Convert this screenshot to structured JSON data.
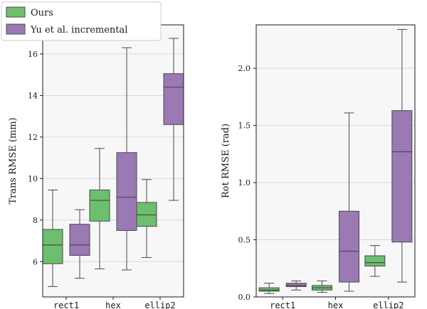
{
  "chart_data": [
    {
      "type": "box",
      "ylabel": "Trans RMSE (mm)",
      "categories": [
        "rect1",
        "hex",
        "ellip2"
      ],
      "yticks": [
        6,
        8,
        10,
        12,
        14,
        16
      ],
      "ylim": [
        4.3,
        17.4
      ],
      "grid": "horizontal",
      "legend": {
        "position": "top-left",
        "entries": [
          "Ours",
          "Yu et al. incremental"
        ]
      },
      "series": [
        {
          "name": "Ours",
          "color": "#6cbf6c",
          "boxes": [
            {
              "min": 4.8,
              "q1": 5.9,
              "median": 6.8,
              "q3": 7.55,
              "max": 9.45
            },
            {
              "min": 5.65,
              "q1": 7.95,
              "median": 8.95,
              "q3": 9.45,
              "max": 11.45
            },
            {
              "min": 6.2,
              "q1": 7.7,
              "median": 8.25,
              "q3": 8.85,
              "max": 9.95
            }
          ]
        },
        {
          "name": "Yu et al. incremental",
          "color": "#9b79b4",
          "boxes": [
            {
              "min": 5.2,
              "q1": 6.3,
              "median": 6.8,
              "q3": 7.8,
              "max": 8.5
            },
            {
              "min": 5.6,
              "q1": 7.5,
              "median": 9.1,
              "q3": 11.25,
              "max": 16.3
            },
            {
              "min": 8.95,
              "q1": 12.6,
              "median": 14.4,
              "q3": 15.05,
              "max": 16.75
            }
          ]
        }
      ]
    },
    {
      "type": "box",
      "ylabel": "Rot RMSE (rad)",
      "categories": [
        "rect1",
        "hex",
        "ellip2"
      ],
      "yticks": [
        "0.0",
        "0.5",
        "1.0",
        "1.5",
        "2.0"
      ],
      "ylim": [
        0.0,
        2.38
      ],
      "grid": "horizontal",
      "series": [
        {
          "name": "Ours",
          "color": "#6cbf6c",
          "boxes": [
            {
              "min": 0.03,
              "q1": 0.05,
              "median": 0.06,
              "q3": 0.08,
              "max": 0.12
            },
            {
              "min": 0.04,
              "q1": 0.06,
              "median": 0.08,
              "q3": 0.1,
              "max": 0.14
            },
            {
              "min": 0.18,
              "q1": 0.27,
              "median": 0.3,
              "q3": 0.36,
              "max": 0.45
            }
          ]
        },
        {
          "name": "Yu et al. incremental",
          "color": "#9b79b4",
          "boxes": [
            {
              "min": 0.06,
              "q1": 0.09,
              "median": 0.1,
              "q3": 0.12,
              "max": 0.14
            },
            {
              "min": 0.05,
              "q1": 0.13,
              "median": 0.4,
              "q3": 0.75,
              "max": 1.61
            },
            {
              "min": 0.13,
              "q1": 0.48,
              "median": 1.27,
              "q3": 1.63,
              "max": 2.34
            }
          ]
        }
      ]
    }
  ]
}
